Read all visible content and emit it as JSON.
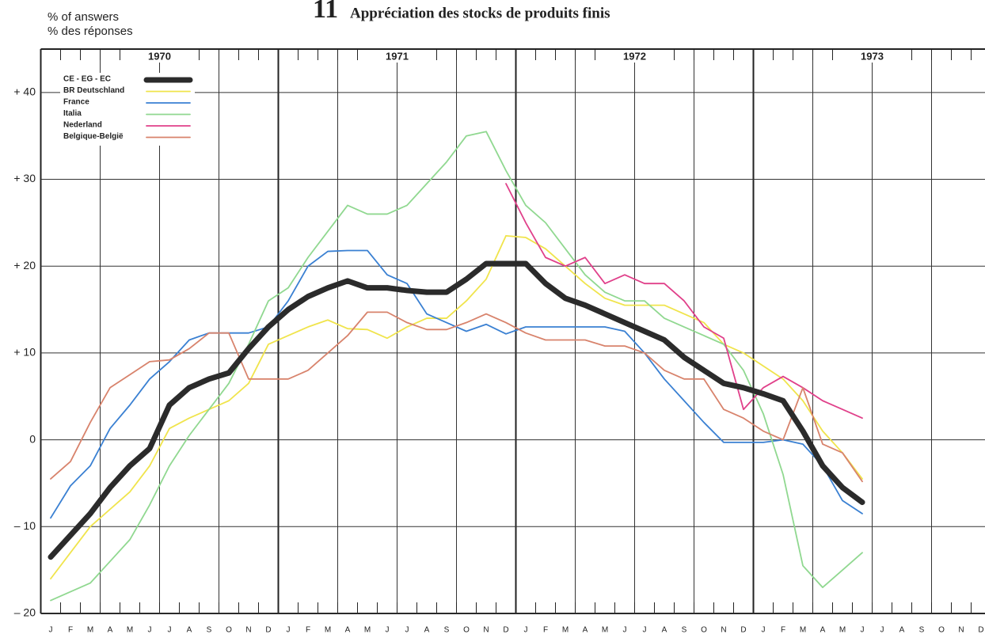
{
  "chart_data": {
    "type": "line",
    "title_number": "11",
    "title": "Appréciation des stocks de produits finis",
    "y_label": [
      "% of answers",
      "% des réponses"
    ],
    "years": [
      "1970",
      "1971",
      "1972",
      "1973"
    ],
    "categories": [
      "J",
      "F",
      "M",
      "A",
      "M",
      "J",
      "J",
      "A",
      "S",
      "O",
      "N",
      "D",
      "J",
      "F",
      "M",
      "A",
      "M",
      "J",
      "J",
      "A",
      "S",
      "O",
      "N",
      "D",
      "J",
      "F",
      "M",
      "A",
      "M",
      "J",
      "J",
      "A",
      "S",
      "O",
      "N",
      "D",
      "J",
      "F",
      "M",
      "A",
      "M",
      "J",
      "J",
      "A",
      "S",
      "O",
      "N",
      "D"
    ],
    "ylim": [
      -20,
      45
    ],
    "yticks": [
      {
        "value": -20,
        "label": "– 20"
      },
      {
        "value": -10,
        "label": "– 10"
      },
      0,
      {
        "value": 10,
        "label": "+ 10"
      },
      {
        "value": 20,
        "label": "+ 20"
      },
      {
        "value": 30,
        "label": "+ 30"
      },
      {
        "value": 40,
        "label": "+ 40"
      }
    ],
    "grid": true,
    "legend": "upper left",
    "series": [
      {
        "name": "CE - EG - EC",
        "color": "#2b2b2b",
        "values": [
          -13.5,
          -11,
          -8.5,
          -5.5,
          -3,
          -1,
          4,
          6,
          7,
          7.7,
          10.5,
          13,
          15,
          16.5,
          17.5,
          18.3,
          17.5,
          17.5,
          17.2,
          17,
          17,
          18.5,
          20.3,
          20.3,
          20.3,
          18,
          16.3,
          15.5,
          14.5,
          13.5,
          12.5,
          11.5,
          9.5,
          8,
          6.5,
          6,
          5.3,
          4.5,
          1,
          -3,
          -5.5,
          -7.2,
          null,
          null,
          null,
          null,
          null,
          null
        ]
      },
      {
        "name": "BR  Deutschland",
        "color": "#f0e44c",
        "values": [
          -16,
          -13,
          -10,
          -8,
          -6,
          -3,
          1.3,
          2.5,
          3.5,
          4.5,
          6.5,
          11,
          12,
          13,
          13.8,
          12.8,
          12.7,
          11.7,
          13,
          14,
          14,
          16,
          18.5,
          23.5,
          23.3,
          22,
          20,
          18,
          16.3,
          15.5,
          15.5,
          15.5,
          14.5,
          13.5,
          11,
          10,
          8.5,
          7,
          4.5,
          1,
          -1.5,
          -4.5,
          null,
          null,
          null,
          null,
          null,
          null
        ]
      },
      {
        "name": "France",
        "color": "#3a80d2",
        "values": [
          -9,
          -5.3,
          -3,
          1.3,
          4,
          7,
          9,
          11.5,
          12.3,
          12.3,
          12.3,
          13,
          16,
          20,
          21.7,
          21.8,
          21.8,
          19,
          18,
          14.5,
          13.5,
          12.5,
          13.3,
          12.2,
          13,
          13,
          13,
          13,
          13,
          12.5,
          10,
          7,
          4.5,
          2,
          -0.3,
          -0.3,
          -0.3,
          0,
          -0.5,
          -3,
          -7,
          -8.5,
          null,
          null,
          null,
          null,
          null,
          null
        ]
      },
      {
        "name": "Italia",
        "color": "#90d890",
        "values": [
          -18.5,
          -17.5,
          -16.5,
          -14,
          -11.5,
          -7.5,
          -3,
          0.5,
          3.5,
          6.5,
          11,
          16,
          17.5,
          21,
          24,
          27,
          26,
          26,
          27,
          29.5,
          32,
          35,
          35.5,
          31,
          27,
          25,
          22,
          19,
          17,
          16,
          16,
          14,
          13,
          12,
          11,
          8,
          3,
          -4,
          -14.5,
          -17,
          -15,
          -13,
          null,
          null,
          null,
          null,
          null,
          null
        ]
      },
      {
        "name": "Nederland",
        "color": "#e0408a",
        "values": [
          null,
          null,
          null,
          null,
          null,
          null,
          null,
          null,
          null,
          null,
          null,
          null,
          null,
          null,
          null,
          null,
          null,
          null,
          null,
          null,
          null,
          null,
          null,
          29.5,
          25,
          21,
          20,
          21,
          18,
          19,
          18,
          18,
          16,
          13,
          11.7,
          3.5,
          6,
          7.3,
          6,
          4.5,
          3.5,
          2.5,
          null,
          null,
          null,
          null,
          null,
          null
        ]
      },
      {
        "name": "Belgique-België",
        "color": "#d8836c",
        "values": [
          -4.5,
          -2.5,
          2,
          6,
          7.5,
          9,
          9.2,
          10.5,
          12.3,
          12.3,
          7,
          7,
          7,
          8,
          10,
          12,
          14.7,
          14.7,
          13.5,
          12.7,
          12.7,
          13.5,
          14.5,
          13.5,
          12.3,
          11.5,
          11.5,
          11.5,
          10.8,
          10.8,
          10,
          8,
          7,
          7,
          3.5,
          2.5,
          1,
          0,
          6,
          -0.5,
          -1.5,
          -4.8,
          null,
          null,
          null,
          null,
          null,
          null
        ]
      }
    ]
  }
}
